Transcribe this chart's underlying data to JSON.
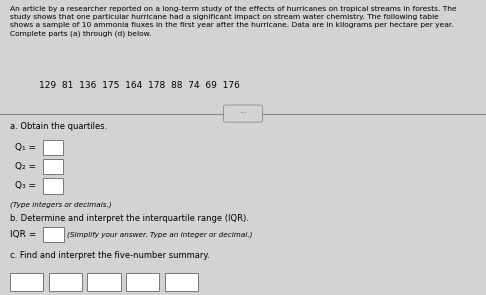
{
  "paragraph": "An article by a researcher reported on a long-term study of the effects of hurricanes on tropical streams in forests. The\nstudy shows that one particular hurricane had a significant impact on stream water chemistry. The following table\nshows a sample of 10 ammonia fluxes in the first year after the hurricane. Data are in kilograms per hectare per year.\nComplete parts (a) through (d) below.",
  "data_line": "129  81  136  175  164  178  88  74  69  176",
  "section_a_label": "a. Obtain the quartiles.",
  "q1_label": "Q₁ = ",
  "q2_label": "Q₂ = ",
  "q3_label": "Q₃ = ",
  "type_note": "(Type integers or decimals.)",
  "section_b_label": "b. Determine and interpret the interquartile range (IQR).",
  "iqr_label": "IQR = ",
  "iqr_note": "(Simplify your answer. Type an integer or decimal.)",
  "section_c_label": "c. Find and interpret the five-number summary.",
  "background_color": "#d3d3d3",
  "text_color": "#000000",
  "box_color": "#ffffff",
  "separator_color": "#888888",
  "dots_color": "#555555"
}
